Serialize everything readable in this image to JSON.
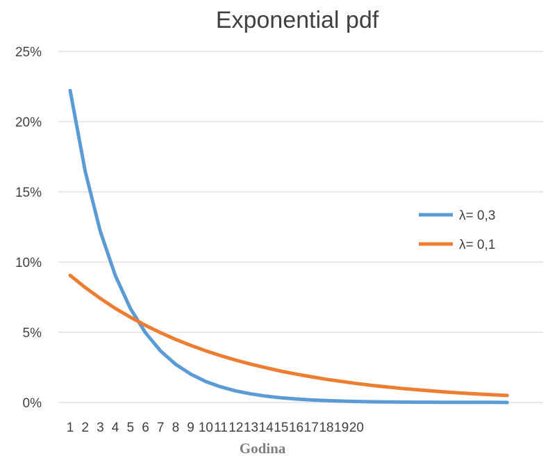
{
  "chart_data": {
    "type": "line",
    "title": "Exponential pdf",
    "xlabel": "Godina",
    "ylabel": "",
    "x_tick_labels": [
      "1",
      "2",
      "3",
      "4",
      "5",
      "6",
      "7",
      "8",
      "9",
      "10",
      "11",
      "12",
      "13",
      "14",
      "15",
      "16",
      "17",
      "18",
      "19",
      "20"
    ],
    "y_tick_labels": [
      "0%",
      "5%",
      "10%",
      "15%",
      "20%",
      "25%"
    ],
    "ylim": [
      0,
      0.25
    ],
    "grid": true,
    "legend_position": "right",
    "x": [
      1,
      2,
      3,
      4,
      5,
      6,
      7,
      8,
      9,
      10,
      11,
      12,
      13,
      14,
      15,
      16,
      17,
      18,
      19,
      20,
      21,
      22,
      23,
      24,
      25,
      26,
      27,
      28,
      29,
      30
    ],
    "series": [
      {
        "name": "λ= 0,3",
        "color": "#5b9bd5",
        "values": [
          0.2222,
          0.1646,
          0.1219,
          0.0903,
          0.0669,
          0.0496,
          0.0367,
          0.0272,
          0.0202,
          0.0149,
          0.0111,
          0.0082,
          0.0061,
          0.0045,
          0.0033,
          0.0025,
          0.0018,
          0.0014,
          0.001,
          0.0007,
          0.0005,
          0.0004,
          0.0003,
          0.0002,
          0.0002,
          0.0001,
          0.0001,
          0.0001,
          0.0001,
          0.0
        ]
      },
      {
        "name": "λ= 0,1",
        "color": "#ed7d31",
        "values": [
          0.0905,
          0.0819,
          0.0741,
          0.067,
          0.0607,
          0.0549,
          0.0497,
          0.0449,
          0.0407,
          0.0368,
          0.0333,
          0.0301,
          0.0273,
          0.0247,
          0.0223,
          0.0202,
          0.0183,
          0.0165,
          0.015,
          0.0135,
          0.0122,
          0.0111,
          0.01,
          0.0091,
          0.0082,
          0.0074,
          0.0067,
          0.0061,
          0.0055,
          0.005
        ]
      }
    ]
  }
}
